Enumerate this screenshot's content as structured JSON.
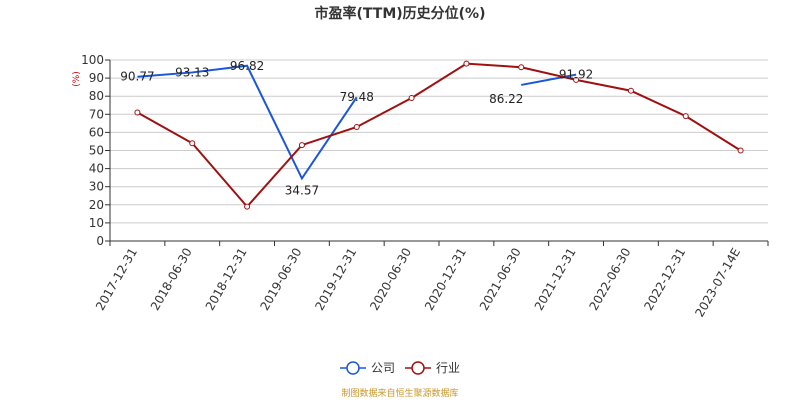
{
  "chart_data": {
    "type": "line",
    "title": "市盈率(TTM)历史分位(%)",
    "ylabel": "(%)",
    "xlabel": "",
    "ylim": [
      0,
      100
    ],
    "yticks": [
      0,
      10,
      20,
      30,
      40,
      50,
      60,
      70,
      80,
      90,
      100
    ],
    "categories": [
      "2017-12-31",
      "2018-06-30",
      "2018-12-31",
      "2019-06-30",
      "2019-12-31",
      "2020-06-30",
      "2020-12-31",
      "2021-06-30",
      "2021-12-31",
      "2022-06-30",
      "2022-12-31",
      "2023-07-14E"
    ],
    "grid": true,
    "legend_position": "bottom",
    "series": [
      {
        "name": "公司",
        "color": "#1a56db",
        "values": [
          90.77,
          93.13,
          96.82,
          34.57,
          79.48,
          null,
          null,
          86.22,
          91.92,
          null,
          null,
          null
        ],
        "show_labels": true,
        "show_markers": false
      },
      {
        "name": "行业",
        "color": "#a01010",
        "values": [
          71,
          54,
          19,
          53,
          63,
          79,
          98,
          96,
          89,
          83,
          69,
          50
        ],
        "show_labels": false,
        "show_markers": true
      }
    ],
    "source": "制图数据来自恒生聚源数据库"
  }
}
